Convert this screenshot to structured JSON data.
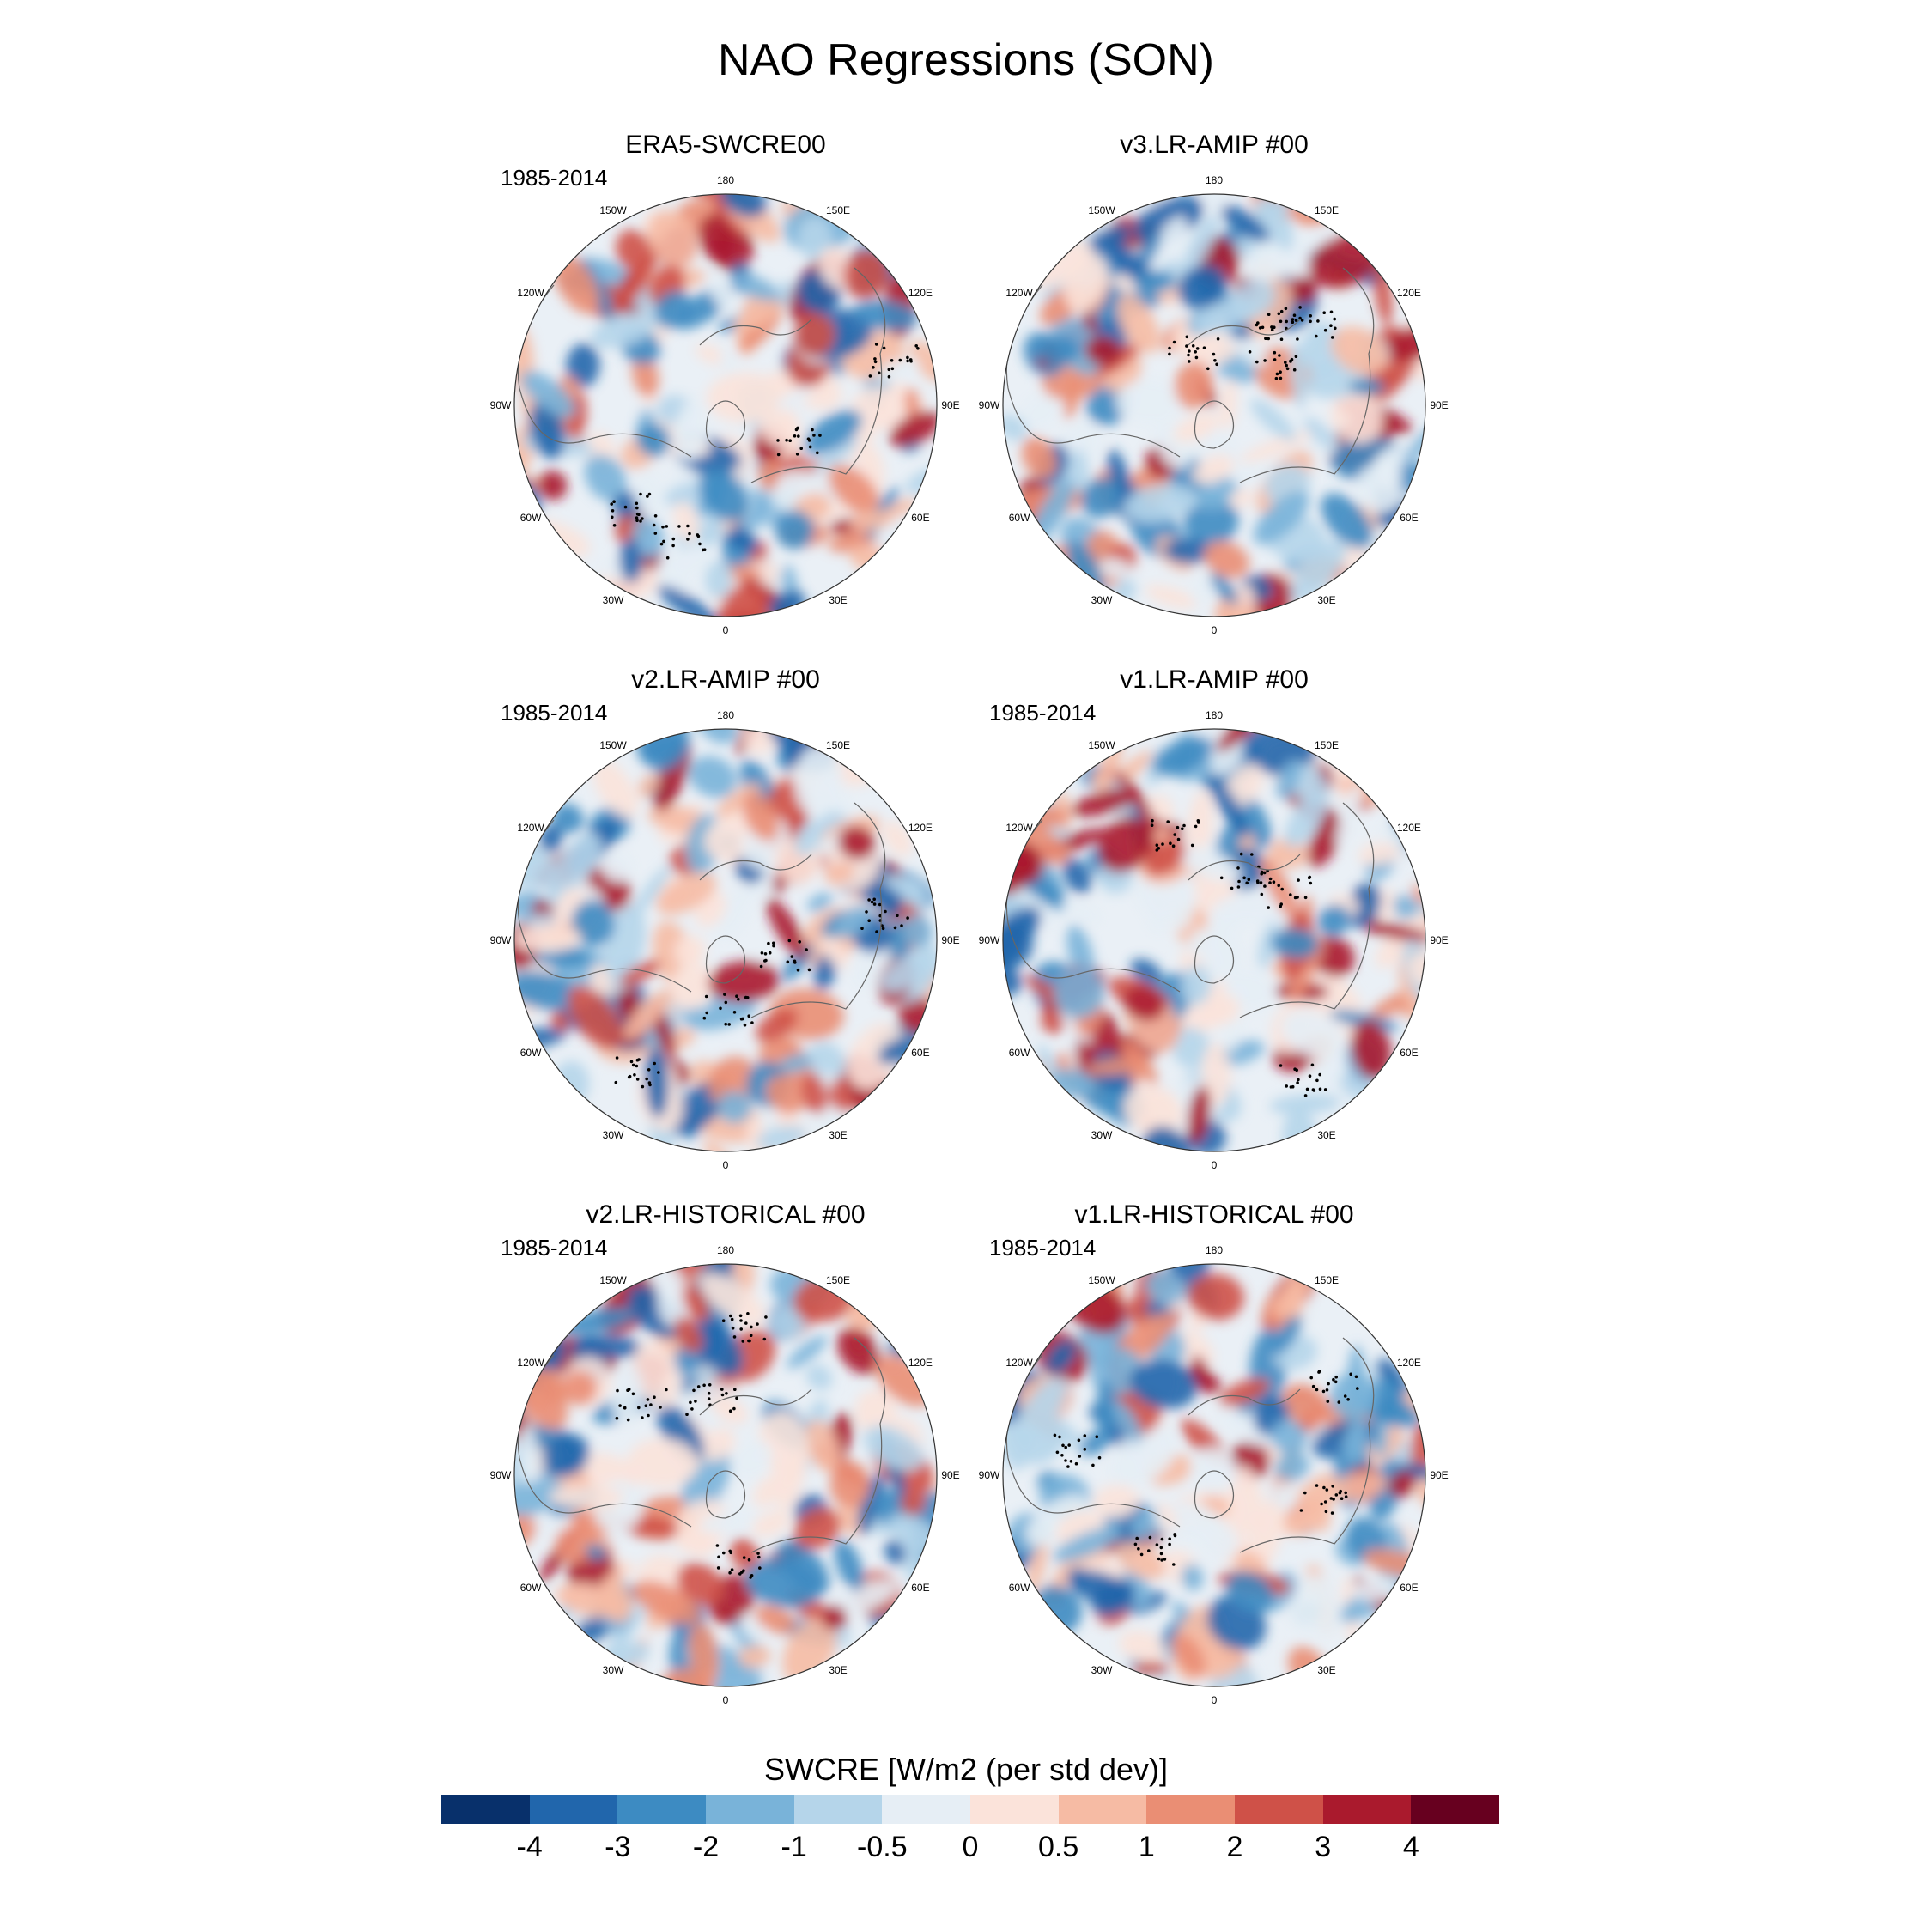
{
  "title": "NAO Regressions (SON)",
  "panels": [
    {
      "id": "era5",
      "title": "ERA5-SWCRE00",
      "period": "1985-2014"
    },
    {
      "id": "v3amip",
      "title": "v3.LR-AMIP  #00",
      "period": ""
    },
    {
      "id": "v2amip",
      "title": "v2.LR-AMIP  #00",
      "period": "1985-2014"
    },
    {
      "id": "v1amip",
      "title": "v1.LR-AMIP  #00",
      "period": "1985-2014"
    },
    {
      "id": "v2hist",
      "title": "v2.LR-HISTORICAL  #00",
      "period": "1985-2014"
    },
    {
      "id": "v1hist",
      "title": "v1.LR-HISTORICAL  #00",
      "period": "1985-2014"
    }
  ],
  "lon_labels": [
    "180",
    "150E",
    "120E",
    "90E",
    "60E",
    "30E",
    "0",
    "30W",
    "60W",
    "90W",
    "120W",
    "150W"
  ],
  "colorbar": {
    "title": "SWCRE [W/m2 (per std dev)]",
    "ticks": [
      "-4",
      "-3",
      "-2",
      "-1",
      "-0.5",
      "0",
      "0.5",
      "1",
      "2",
      "3",
      "4"
    ],
    "colors": [
      "#08306b",
      "#2166ac",
      "#3d8bc2",
      "#79b3d9",
      "#b5d5ea",
      "#e6eef5",
      "#fbe3da",
      "#f6bba4",
      "#ea8e74",
      "#cf5148",
      "#aa1a2d",
      "#67001f"
    ]
  }
}
